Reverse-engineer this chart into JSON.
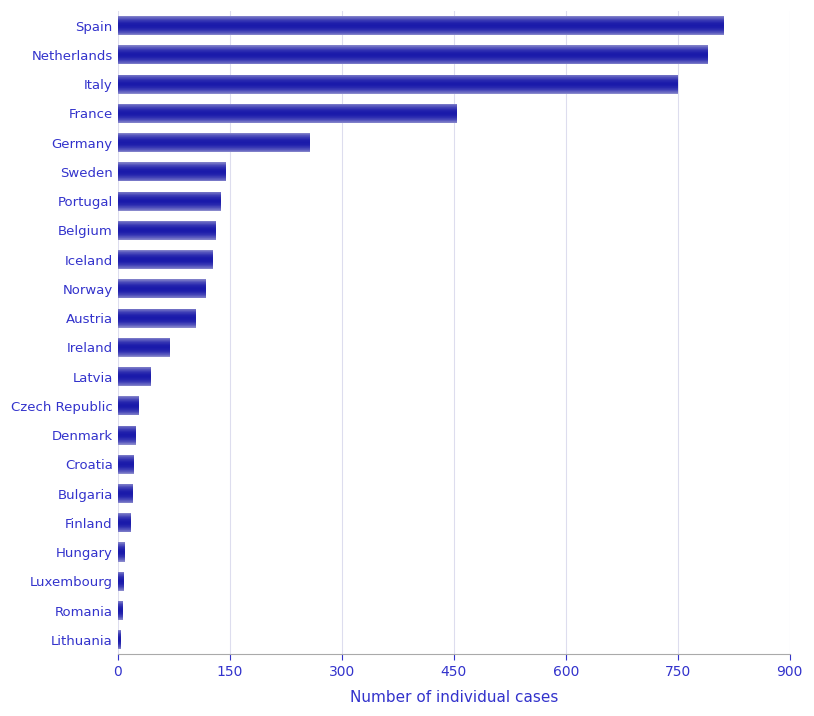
{
  "categories": [
    "Lithuania",
    "Romania",
    "Luxembourg",
    "Hungary",
    "Finland",
    "Bulgaria",
    "Croatia",
    "Denmark",
    "Czech Republic",
    "Latvia",
    "Ireland",
    "Austria",
    "Norway",
    "Iceland",
    "Belgium",
    "Portugal",
    "Sweden",
    "Germany",
    "France",
    "Italy",
    "Netherlands",
    "Spain"
  ],
  "values": [
    5,
    7,
    8,
    10,
    18,
    20,
    22,
    25,
    28,
    45,
    70,
    105,
    118,
    127,
    132,
    138,
    145,
    258,
    455,
    750,
    790,
    812
  ],
  "bar_color_dark": "#1a1aaa",
  "bar_color_light": "#8888cc",
  "xlabel": "Number of individual cases",
  "xlim": [
    0,
    900
  ],
  "xticks": [
    0,
    150,
    300,
    450,
    600,
    750,
    900
  ],
  "xlabel_color": "#3333cc",
  "tick_color": "#3333cc",
  "grid_color": "#ddddee",
  "background_color": "#ffffff",
  "figsize": [
    8.14,
    7.16
  ],
  "dpi": 100,
  "bar_height": 0.65,
  "gradient_steps": 50
}
